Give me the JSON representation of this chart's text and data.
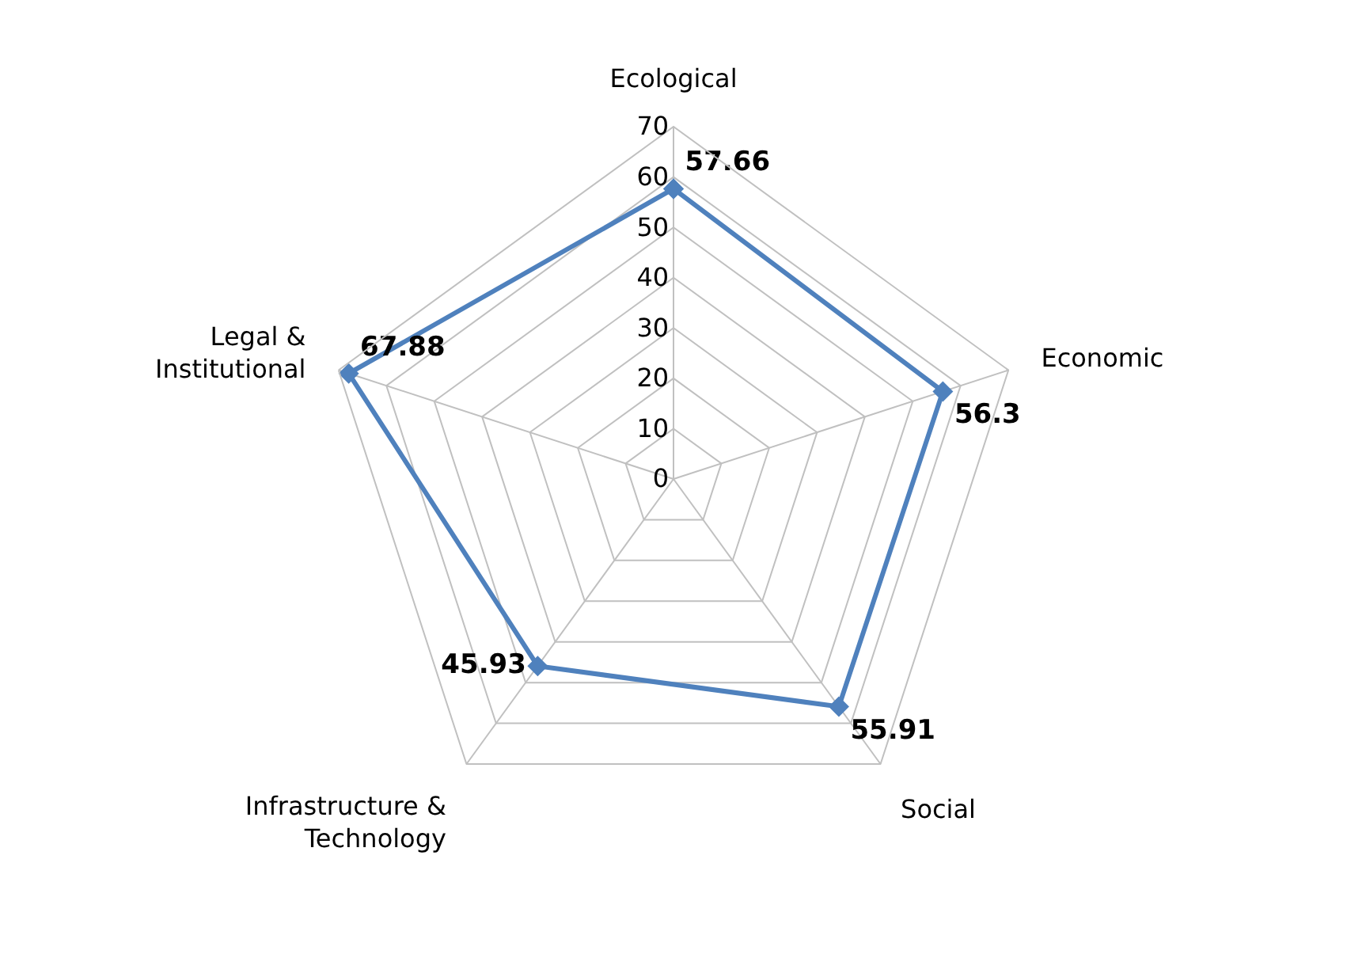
{
  "chart_data": {
    "type": "radar",
    "categories": [
      "Ecological",
      "Economic",
      "Social",
      "Infrastructure &\nTechnology",
      "Legal &\nInstitutional"
    ],
    "series": [
      {
        "color": "#4f81bd",
        "values": [
          57.66,
          56.3,
          55.91,
          45.93,
          67.88
        ]
      }
    ],
    "ylim": [
      0,
      70
    ],
    "yticks": [
      0,
      10,
      20,
      30,
      40,
      50,
      60,
      70
    ],
    "grid": true,
    "marker": "diamond",
    "line_style": "solid",
    "data_labels": true
  }
}
